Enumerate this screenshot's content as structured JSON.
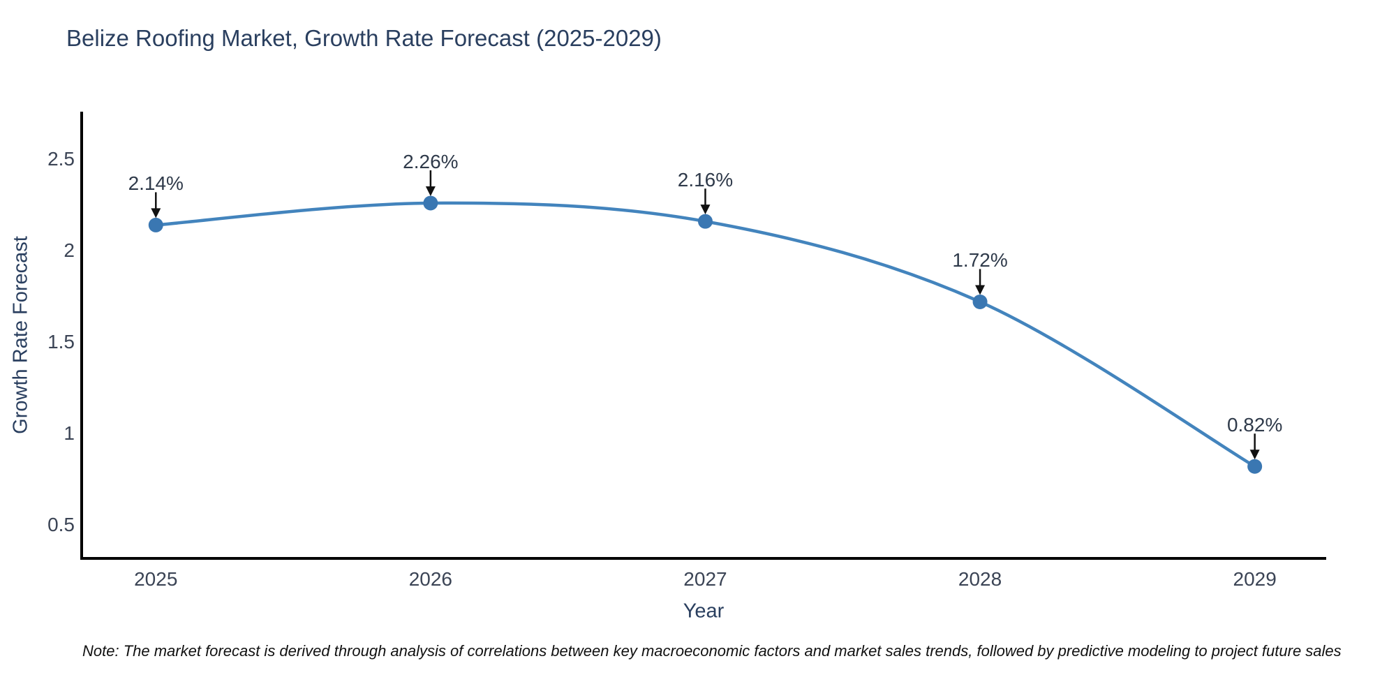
{
  "chart_data": {
    "type": "line",
    "title": "Belize Roofing Market, Growth Rate Forecast (2025-2029)",
    "xlabel": "Year",
    "ylabel": "Growth Rate Forecast",
    "x": [
      2025,
      2026,
      2027,
      2028,
      2029
    ],
    "series": [
      {
        "name": "Growth Rate Forecast",
        "values": [
          2.14,
          2.26,
          2.16,
          1.72,
          0.82
        ]
      }
    ],
    "point_labels": [
      "2.14%",
      "2.26%",
      "2.16%",
      "1.72%",
      "0.82%"
    ],
    "xticks": [
      "2025",
      "2026",
      "2027",
      "2028",
      "2029"
    ],
    "xtick_values": [
      2025,
      2026,
      2027,
      2028,
      2029
    ],
    "yticks": [
      "0.5",
      "1",
      "1.5",
      "2",
      "2.5"
    ],
    "ytick_values": [
      0.5,
      1,
      1.5,
      2,
      2.5
    ],
    "xlim": [
      2024.73,
      2029.26
    ],
    "ylim": [
      0.317,
      2.76
    ],
    "line_shape": "spline",
    "grid": false,
    "legend": "none",
    "colors": {
      "line": "#4384bd",
      "marker": "#3a77b2",
      "axis": "#000000",
      "arrow": "#111111",
      "title_text": "#2a3f5f",
      "tick_text": "#3b4455"
    }
  },
  "note": {
    "text": "Note: The market forecast is derived through analysis of correlations between key macroeconomic factors and market sales trends, followed by predictive modeling to project future sales"
  }
}
